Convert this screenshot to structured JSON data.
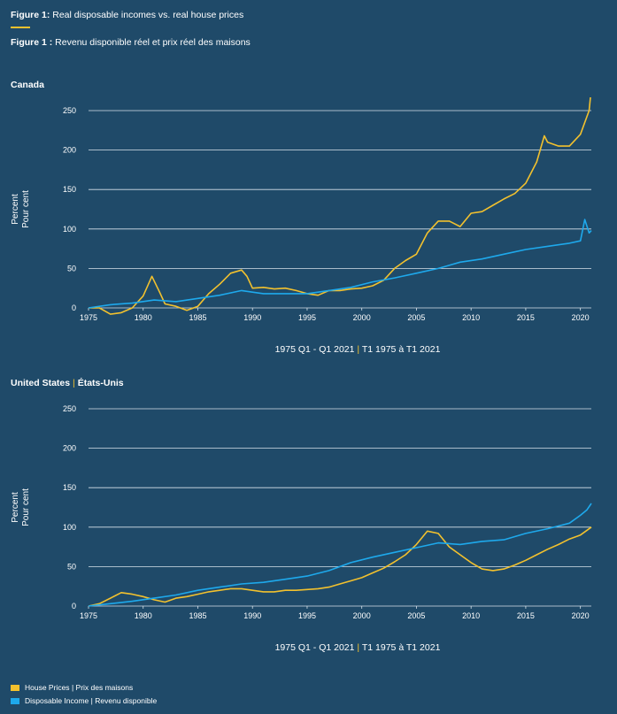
{
  "figure": {
    "title_en_prefix": "Figure 1:",
    "title_en": " Real disposable incomes vs. real house prices",
    "title_fr_prefix": "Figure 1 :",
    "title_fr": " Revenu disponible réel et prix réel des maisons"
  },
  "colors": {
    "background": "#1f4a69",
    "house_prices": "#f2c12e",
    "disposable_income": "#1ea9ec",
    "accent_rule": "#f2c12e"
  },
  "legend": [
    {
      "label_en": "House Prices",
      "sep": "|",
      "label_fr": "Prix des maisons",
      "color": "#f2c12e"
    },
    {
      "label_en": "Disposable Income",
      "sep": "|",
      "label_fr": "Revenu disponible",
      "color": "#1ea9ec"
    }
  ],
  "chart_data": [
    {
      "type": "line",
      "title": "Canada",
      "ylabel": [
        "Percent",
        "Pour cent"
      ],
      "xlabel": {
        "en": "1975 Q1 - Q1 2021",
        "sep": "|",
        "fr": "T1 1975 à T1 2021"
      },
      "ylim": [
        0,
        250
      ],
      "xlim": [
        1975,
        2021
      ],
      "yticks": [
        0,
        50,
        100,
        150,
        200,
        250
      ],
      "xticks": [
        1975,
        1980,
        1985,
        1990,
        1995,
        2000,
        2005,
        2010,
        2015,
        2020
      ],
      "grid": true,
      "series": [
        {
          "name": "House Prices",
          "color": "#f2c12e",
          "x": [
            1975,
            1976,
            1977,
            1978,
            1979,
            1980,
            1980.8,
            1981.5,
            1982,
            1983,
            1984,
            1985,
            1986,
            1987,
            1988,
            1989,
            1989.5,
            1990,
            1991,
            1992,
            1993,
            1994,
            1995,
            1996,
            1997,
            1998,
            1999,
            2000,
            2001,
            2002,
            2003,
            2004,
            2005,
            2006,
            2007,
            2008,
            2009,
            2010,
            2011,
            2012,
            2013,
            2014,
            2015,
            2016,
            2016.7,
            2017,
            2018,
            2019,
            2020,
            2020.8,
            2021
          ],
          "y": [
            0,
            0,
            -8,
            -6,
            0,
            15,
            40,
            20,
            5,
            2,
            -3,
            2,
            18,
            30,
            44,
            48,
            40,
            25,
            26,
            24,
            25,
            22,
            18,
            16,
            22,
            22,
            24,
            25,
            28,
            35,
            50,
            60,
            68,
            95,
            110,
            110,
            103,
            120,
            122,
            130,
            138,
            145,
            158,
            185,
            218,
            210,
            205,
            205,
            220,
            250,
            278
          ]
        },
        {
          "name": "Disposable Income",
          "color": "#1ea9ec",
          "x": [
            1975,
            1977,
            1979,
            1981,
            1983,
            1985,
            1987,
            1989,
            1990,
            1991,
            1993,
            1995,
            1997,
            1999,
            2001,
            2003,
            2005,
            2007,
            2009,
            2011,
            2013,
            2015,
            2017,
            2019,
            2020,
            2020.4,
            2020.8,
            2021
          ],
          "y": [
            0,
            4,
            6,
            10,
            8,
            12,
            16,
            22,
            20,
            18,
            18,
            18,
            22,
            26,
            33,
            38,
            44,
            50,
            58,
            62,
            68,
            74,
            78,
            82,
            85,
            112,
            95,
            98
          ]
        }
      ]
    },
    {
      "type": "line",
      "title": "United States",
      "title_sep": "|",
      "title_fr": "États-Unis",
      "ylabel": [
        "Percent",
        "Pour cent"
      ],
      "xlabel": {
        "en": "1975 Q1 - Q1 2021",
        "sep": "|",
        "fr": "T1 1975 à T1 2021"
      },
      "ylim": [
        0,
        250
      ],
      "xlim": [
        1975,
        2021
      ],
      "yticks": [
        0,
        50,
        100,
        150,
        200,
        250
      ],
      "xticks": [
        1975,
        1980,
        1985,
        1990,
        1995,
        2000,
        2005,
        2010,
        2015,
        2020
      ],
      "grid": true,
      "series": [
        {
          "name": "House Prices",
          "color": "#f2c12e",
          "x": [
            1975,
            1976,
            1977,
            1978,
            1979,
            1980,
            1981,
            1982,
            1983,
            1984,
            1985,
            1986,
            1987,
            1988,
            1989,
            1990,
            1991,
            1992,
            1993,
            1994,
            1995,
            1996,
            1997,
            1998,
            1999,
            2000,
            2001,
            2002,
            2003,
            2004,
            2005,
            2006,
            2007,
            2008,
            2009,
            2010,
            2011,
            2012,
            2013,
            2014,
            2015,
            2016,
            2017,
            2018,
            2019,
            2020,
            2021
          ],
          "y": [
            0,
            3,
            10,
            17,
            15,
            12,
            8,
            5,
            10,
            12,
            15,
            18,
            20,
            22,
            22,
            20,
            18,
            18,
            20,
            20,
            21,
            22,
            24,
            28,
            32,
            36,
            42,
            48,
            56,
            65,
            78,
            95,
            92,
            75,
            65,
            55,
            47,
            45,
            47,
            52,
            58,
            65,
            72,
            78,
            85,
            90,
            100
          ]
        },
        {
          "name": "Disposable Income",
          "color": "#1ea9ec",
          "x": [
            1975,
            1977,
            1979,
            1981,
            1983,
            1985,
            1987,
            1989,
            1991,
            1993,
            1995,
            1997,
            1999,
            2001,
            2003,
            2005,
            2007,
            2009,
            2011,
            2013,
            2015,
            2017,
            2019,
            2020,
            2020.6,
            2021
          ],
          "y": [
            0,
            3,
            6,
            10,
            14,
            20,
            24,
            28,
            30,
            34,
            38,
            45,
            55,
            62,
            68,
            74,
            80,
            78,
            82,
            84,
            92,
            98,
            105,
            115,
            122,
            130
          ]
        }
      ]
    }
  ]
}
